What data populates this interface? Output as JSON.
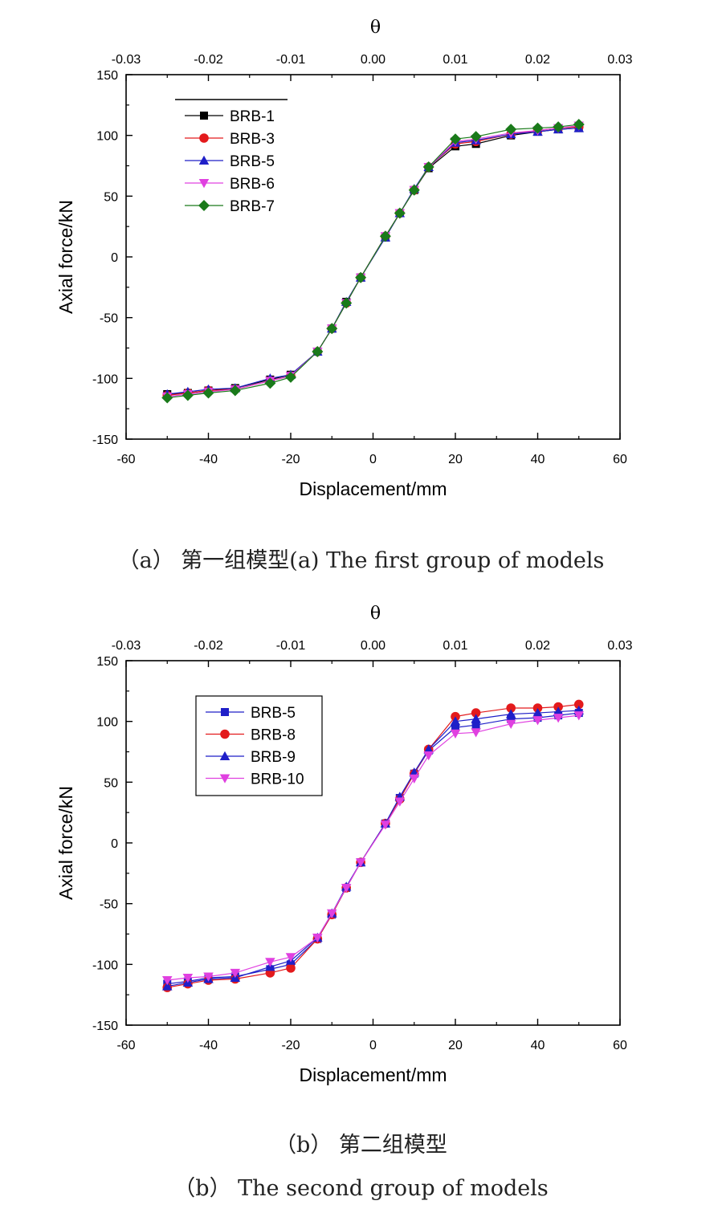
{
  "colors": {
    "BRB-1": "#000000",
    "BRB-3": "#e31a1c",
    "BRB-5": "#1f1fc8",
    "BRB-6": "#e040e0",
    "BRB-7": "#1a7a1a",
    "BRB-8": "#e31a1c",
    "BRB-9": "#1f1fc8",
    "BRB-10": "#e040e0"
  },
  "captions": {
    "a": "（a） 第一组模型(a) The first group of models",
    "b1": "（b） 第二组模型",
    "b2": "（b） The second group of models"
  },
  "chart_data": [
    {
      "type": "line",
      "xlabel": "Displacement/mm",
      "ylabel": "Axial force/kN",
      "top_axis_label": "θ",
      "xlim": [
        -60,
        60
      ],
      "ylim": [
        -150,
        150
      ],
      "top_xlim": [
        -0.03,
        0.03
      ],
      "xticks": [
        "-60",
        "-40",
        "-20",
        "0",
        "20",
        "40",
        "60"
      ],
      "yticks": [
        "-150",
        "-100",
        "-50",
        "0",
        "50",
        "100",
        "150"
      ],
      "top_ticks": [
        "-0.03",
        "-0.02",
        "-0.01",
        "0.00",
        "0.01",
        "0.02",
        "0.03"
      ],
      "legend_position": "top-left",
      "x": [
        -50,
        -45,
        -40,
        -33.5,
        -25,
        -20,
        -13.5,
        -10,
        -6.5,
        -3,
        3,
        6.5,
        10,
        13.5,
        20,
        25,
        33.5,
        40,
        45,
        50
      ],
      "series": [
        {
          "name": "BRB-1",
          "marker": "square",
          "values": [
            -113,
            -112,
            -110,
            -108,
            -101,
            -97,
            -78,
            -59,
            -37,
            -17,
            16,
            36,
            55,
            73,
            91,
            93,
            100,
            103,
            105,
            106
          ]
        },
        {
          "name": "BRB-3",
          "marker": "circle",
          "values": [
            -114,
            -112,
            -110,
            -109,
            -102,
            -98,
            -78,
            -59,
            -38,
            -17,
            17,
            36,
            55,
            74,
            93,
            95,
            101,
            104,
            106,
            107
          ]
        },
        {
          "name": "BRB-5",
          "marker": "triangle-up",
          "values": [
            -113,
            -111,
            -109,
            -108,
            -100,
            -97,
            -78,
            -59,
            -37,
            -17,
            16,
            36,
            56,
            74,
            94,
            96,
            101,
            103,
            105,
            106
          ]
        },
        {
          "name": "BRB-6",
          "marker": "triangle-down",
          "values": [
            -115,
            -113,
            -111,
            -109,
            -102,
            -98,
            -78,
            -59,
            -38,
            -17,
            17,
            36,
            55,
            74,
            95,
            97,
            102,
            104,
            106,
            108
          ]
        },
        {
          "name": "BRB-7",
          "marker": "diamond",
          "values": [
            -116,
            -114,
            -112,
            -110,
            -104,
            -99,
            -78,
            -59,
            -38,
            -17,
            17,
            36,
            55,
            74,
            97,
            99,
            105,
            106,
            107,
            109
          ]
        }
      ]
    },
    {
      "type": "line",
      "xlabel": "Displacement/mm",
      "ylabel": "Axial force/kN",
      "top_axis_label": "θ",
      "xlim": [
        -60,
        60
      ],
      "ylim": [
        -150,
        150
      ],
      "top_xlim": [
        -0.03,
        0.03
      ],
      "xticks": [
        "-60",
        "-40",
        "-20",
        "0",
        "20",
        "40",
        "60"
      ],
      "yticks": [
        "-150",
        "-100",
        "-50",
        "0",
        "50",
        "100",
        "150"
      ],
      "top_ticks": [
        "-0.03",
        "-0.02",
        "-0.01",
        "0.00",
        "0.01",
        "0.02",
        "0.03"
      ],
      "legend_position": "top-left",
      "x": [
        -50,
        -45,
        -40,
        -33.5,
        -25,
        -20,
        -13.5,
        -10,
        -6.5,
        -3,
        3,
        6.5,
        10,
        13.5,
        20,
        25,
        33.5,
        40,
        45,
        50
      ],
      "series": [
        {
          "name": "BRB-5",
          "marker": "square",
          "values": [
            -116,
            -114,
            -111,
            -110,
            -104,
            -100,
            -79,
            -59,
            -37,
            -16,
            16,
            37,
            57,
            76,
            95,
            97,
            102,
            103,
            105,
            107
          ]
        },
        {
          "name": "BRB-8",
          "marker": "circle",
          "values": [
            -119,
            -116,
            -113,
            -112,
            -107,
            -103,
            -79,
            -59,
            -37,
            -16,
            16,
            36,
            57,
            77,
            104,
            107,
            111,
            111,
            112,
            114
          ]
        },
        {
          "name": "BRB-9",
          "marker": "triangle-up",
          "values": [
            -118,
            -115,
            -112,
            -111,
            -102,
            -97,
            -78,
            -58,
            -36,
            -16,
            16,
            38,
            58,
            77,
            100,
            102,
            106,
            107,
            108,
            109
          ]
        },
        {
          "name": "BRB-10",
          "marker": "triangle-down",
          "values": [
            -113,
            -111,
            -110,
            -107,
            -98,
            -94,
            -78,
            -58,
            -37,
            -16,
            15,
            34,
            53,
            72,
            90,
            91,
            98,
            101,
            103,
            105
          ]
        }
      ]
    }
  ]
}
